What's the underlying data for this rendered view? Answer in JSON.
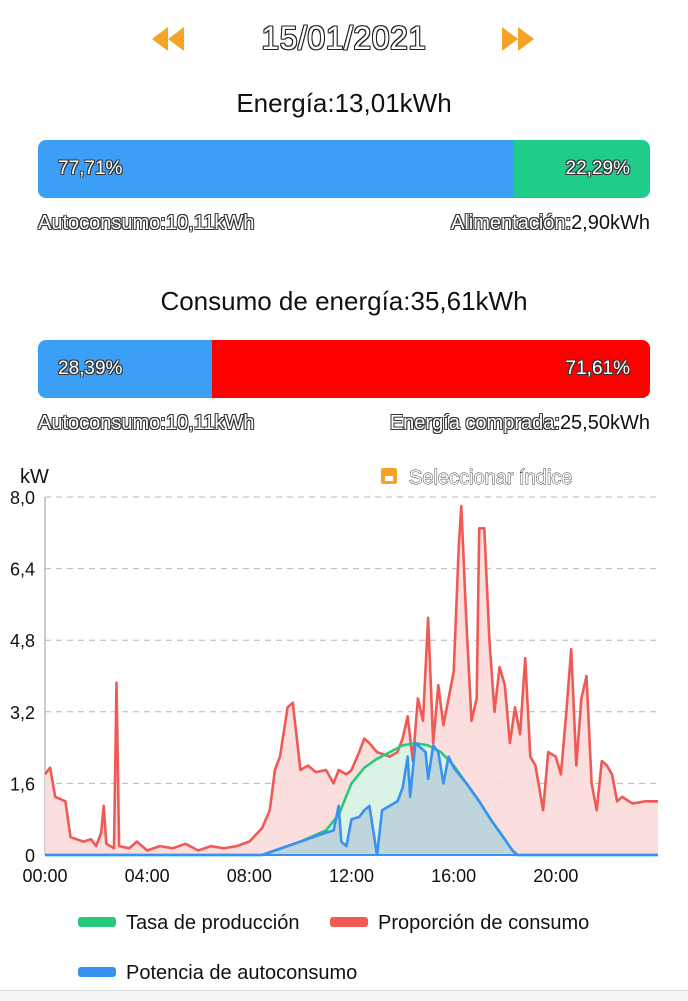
{
  "date": "15/01/2021",
  "energy": {
    "title": "Energía:13,01kWh",
    "left_pct": "77,71%",
    "right_pct": "22,29%",
    "left_fraction": 0.7771,
    "left_label": "Autoconsumo:10,11kWh",
    "right_label_name": "Alimentación:",
    "right_label_value": "2,90kWh",
    "left_color": "#3ba0f5",
    "right_color": "#1fcc8a"
  },
  "consumption": {
    "title": "Consumo de energía:35,61kWh",
    "left_pct": "28,39%",
    "right_pct": "71,61%",
    "left_fraction": 0.2839,
    "left_label": "Autoconsumo:10,11kWh",
    "right_label_name": "Energía comprada:",
    "right_label_value": "25,50kWh",
    "left_color": "#3ba0f5",
    "right_color": "#ff0000"
  },
  "chart_data": {
    "type": "line",
    "ylabel": "kW",
    "select_index_label": "Seleccionar índice",
    "ylim": [
      0,
      8.0
    ],
    "yticks": [
      "0",
      "1,6",
      "3,2",
      "4,8",
      "6,4",
      "8,0"
    ],
    "xticks": [
      "00:00",
      "04:00",
      "08:00",
      "12:00",
      "16:00",
      "20:00"
    ],
    "x_range_hours": [
      0,
      24
    ],
    "grid": true,
    "legend_position": "bottom",
    "series": [
      {
        "name": "Tasa de producción",
        "color": "#27c97a",
        "fill": "#d6f5e6",
        "points": [
          [
            0,
            0
          ],
          [
            8.5,
            0
          ],
          [
            9,
            0.1
          ],
          [
            10,
            0.3
          ],
          [
            11,
            0.55
          ],
          [
            11.5,
            0.9
          ],
          [
            12,
            1.6
          ],
          [
            12.5,
            1.95
          ],
          [
            13,
            2.15
          ],
          [
            13.5,
            2.3
          ],
          [
            14,
            2.45
          ],
          [
            14.5,
            2.5
          ],
          [
            15,
            2.45
          ],
          [
            15.5,
            2.3
          ],
          [
            16,
            2.0
          ],
          [
            16.5,
            1.6
          ],
          [
            17,
            1.2
          ],
          [
            17.5,
            0.75
          ],
          [
            18,
            0.35
          ],
          [
            18.3,
            0.1
          ],
          [
            18.5,
            0
          ],
          [
            24,
            0
          ]
        ]
      },
      {
        "name": "Proporción de consumo",
        "color": "#f05a55",
        "fill": "#fbdada",
        "points": [
          [
            0,
            1.8
          ],
          [
            0.2,
            1.95
          ],
          [
            0.4,
            1.3
          ],
          [
            0.8,
            1.2
          ],
          [
            1,
            0.4
          ],
          [
            1.5,
            0.3
          ],
          [
            1.8,
            0.35
          ],
          [
            2,
            0.2
          ],
          [
            2.2,
            0.5
          ],
          [
            2.3,
            1.1
          ],
          [
            2.4,
            0.25
          ],
          [
            2.7,
            0.15
          ],
          [
            2.8,
            3.85
          ],
          [
            2.9,
            0.2
          ],
          [
            3.3,
            0.15
          ],
          [
            3.6,
            0.3
          ],
          [
            4,
            0.1
          ],
          [
            4.5,
            0.2
          ],
          [
            5,
            0.15
          ],
          [
            5.5,
            0.25
          ],
          [
            6,
            0.1
          ],
          [
            6.5,
            0.2
          ],
          [
            7,
            0.15
          ],
          [
            7.5,
            0.2
          ],
          [
            8,
            0.3
          ],
          [
            8.5,
            0.6
          ],
          [
            8.8,
            1.0
          ],
          [
            9,
            1.9
          ],
          [
            9.2,
            2.2
          ],
          [
            9.5,
            3.3
          ],
          [
            9.7,
            3.4
          ],
          [
            10,
            1.9
          ],
          [
            10.3,
            2.0
          ],
          [
            10.6,
            1.85
          ],
          [
            11,
            1.9
          ],
          [
            11.3,
            1.6
          ],
          [
            11.5,
            1.9
          ],
          [
            11.8,
            1.8
          ],
          [
            12,
            1.9
          ],
          [
            12.3,
            2.3
          ],
          [
            12.5,
            2.6
          ],
          [
            12.7,
            2.5
          ],
          [
            13,
            2.3
          ],
          [
            13.5,
            2.2
          ],
          [
            13.8,
            2.3
          ],
          [
            14,
            2.6
          ],
          [
            14.2,
            3.1
          ],
          [
            14.4,
            2.1
          ],
          [
            14.6,
            3.5
          ],
          [
            14.8,
            3.0
          ],
          [
            15,
            5.3
          ],
          [
            15.2,
            2.5
          ],
          [
            15.4,
            3.8
          ],
          [
            15.6,
            2.9
          ],
          [
            15.8,
            3.5
          ],
          [
            16,
            4.1
          ],
          [
            16.2,
            6.9
          ],
          [
            16.3,
            7.8
          ],
          [
            16.5,
            5.2
          ],
          [
            16.7,
            3.0
          ],
          [
            16.9,
            3.5
          ],
          [
            17,
            7.3
          ],
          [
            17.2,
            7.3
          ],
          [
            17.4,
            4.8
          ],
          [
            17.6,
            3.2
          ],
          [
            17.8,
            4.2
          ],
          [
            18,
            3.8
          ],
          [
            18.2,
            2.5
          ],
          [
            18.4,
            3.3
          ],
          [
            18.6,
            2.7
          ],
          [
            18.8,
            4.4
          ],
          [
            19,
            2.2
          ],
          [
            19.2,
            2.0
          ],
          [
            19.5,
            1.0
          ],
          [
            19.7,
            2.3
          ],
          [
            20,
            2.2
          ],
          [
            20.2,
            1.8
          ],
          [
            20.4,
            3.1
          ],
          [
            20.6,
            4.6
          ],
          [
            20.8,
            2.0
          ],
          [
            21,
            3.5
          ],
          [
            21.2,
            4.0
          ],
          [
            21.4,
            1.6
          ],
          [
            21.6,
            1.0
          ],
          [
            21.8,
            2.1
          ],
          [
            22,
            2.0
          ],
          [
            22.2,
            1.8
          ],
          [
            22.4,
            1.2
          ],
          [
            22.6,
            1.3
          ],
          [
            23,
            1.15
          ],
          [
            23.5,
            1.2
          ],
          [
            24,
            1.2
          ]
        ]
      },
      {
        "name": "Potencia de autoconsumo",
        "color": "#3a92f0",
        "fill": "#b9cfd9",
        "points": [
          [
            0,
            0
          ],
          [
            8.5,
            0
          ],
          [
            9,
            0.1
          ],
          [
            10,
            0.3
          ],
          [
            11,
            0.5
          ],
          [
            11.3,
            0.55
          ],
          [
            11.5,
            1.1
          ],
          [
            11.6,
            0.3
          ],
          [
            11.8,
            0.2
          ],
          [
            12,
            0.8
          ],
          [
            12.3,
            0.85
          ],
          [
            12.5,
            1.0
          ],
          [
            12.7,
            1.1
          ],
          [
            13,
            0.0
          ],
          [
            13.2,
            1.0
          ],
          [
            13.5,
            1.1
          ],
          [
            13.8,
            1.2
          ],
          [
            14,
            1.5
          ],
          [
            14.2,
            2.2
          ],
          [
            14.3,
            1.3
          ],
          [
            14.5,
            2.5
          ],
          [
            14.7,
            2.4
          ],
          [
            14.9,
            2.3
          ],
          [
            15,
            1.7
          ],
          [
            15.2,
            2.45
          ],
          [
            15.4,
            2.3
          ],
          [
            15.6,
            1.6
          ],
          [
            15.8,
            2.2
          ],
          [
            16,
            1.95
          ],
          [
            16.5,
            1.6
          ],
          [
            17,
            1.2
          ],
          [
            17.5,
            0.75
          ],
          [
            18,
            0.35
          ],
          [
            18.3,
            0.1
          ],
          [
            18.5,
            0
          ],
          [
            24,
            0
          ]
        ]
      }
    ]
  }
}
